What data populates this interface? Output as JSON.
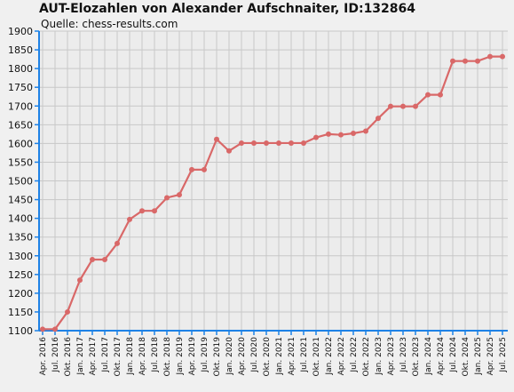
{
  "chart_data": {
    "type": "line",
    "title": "AUT-Elozahlen von Alexander Aufschnaiter, ID:132864",
    "subtitle": "Quelle: chess-results.com",
    "xlabel": "",
    "ylabel": "",
    "ylim": [
      1100,
      1900
    ],
    "yticks": [
      1100,
      1150,
      1200,
      1250,
      1300,
      1350,
      1400,
      1450,
      1500,
      1550,
      1600,
      1650,
      1700,
      1750,
      1800,
      1850,
      1900
    ],
    "grid": true,
    "legend": "none",
    "categories": [
      "Apr. 2016",
      "Jul. 2016",
      "Okt. 2016",
      "Jan. 2017",
      "Apr. 2017",
      "Jul. 2017",
      "Okt. 2017",
      "Jan. 2018",
      "Apr. 2018",
      "Jul. 2018",
      "Okt. 2018",
      "Jan. 2019",
      "Apr. 2019",
      "Jul. 2019",
      "Okt. 2019",
      "Jan. 2020",
      "Apr. 2020",
      "Jul. 2020",
      "Okt. 2020",
      "Jan. 2021",
      "Apr. 2021",
      "Jul. 2021",
      "Okt. 2021",
      "Jan. 2022",
      "Apr. 2022",
      "Jul. 2022",
      "Okt. 2022",
      "Jan. 2023",
      "Apr. 2023",
      "Jul. 2023",
      "Okt. 2023",
      "Jan. 2024",
      "Apr. 2024",
      "Jul. 2024",
      "Okt. 2024",
      "Jan. 2025",
      "Apr. 2025",
      "Jul. 2025"
    ],
    "series": [
      {
        "values": [
          1104,
          1104,
          1150,
          1235,
          1290,
          1290,
          1333,
          1397,
          1420,
          1420,
          1455,
          1463,
          1530,
          1530,
          1611,
          1580,
          1601,
          1601,
          1601,
          1601,
          1601,
          1601,
          1616,
          1625,
          1623,
          1627,
          1633,
          1667,
          1699,
          1699,
          1699,
          1730,
          1730,
          1820,
          1820,
          1820,
          1832,
          1832
        ]
      }
    ],
    "colors": {
      "line": "#d96868",
      "axis": "#1e82e6",
      "grid": "#c8c8c8",
      "plot_bg": "#ececec"
    }
  }
}
